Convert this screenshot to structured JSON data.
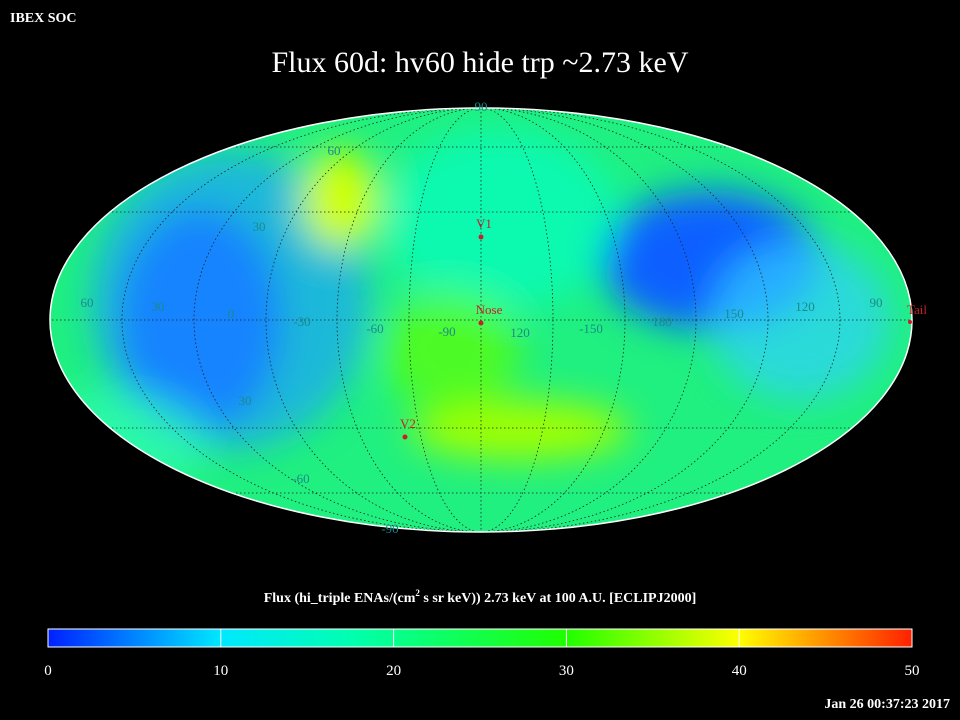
{
  "header": {
    "source": "IBEX SOC",
    "title": "Flux   60d: hv60 hide trp ~2.73 keV"
  },
  "map": {
    "grid_labels": [
      "90",
      "60",
      "30",
      "60",
      "30",
      "0",
      "-30",
      "-60",
      "-90",
      "120",
      "-150",
      "180",
      "150",
      "120",
      "90",
      "30",
      "-60",
      "-90"
    ],
    "markers": [
      "V1",
      "Nose",
      "Tail",
      "V2"
    ]
  },
  "colorbar": {
    "label_parts": [
      "Flux (hi_triple ENAs/(cm",
      "2",
      " s sr keV))  2.73 keV at 100 A.U. [ECLIPJ2000]"
    ],
    "lim": [
      0,
      50
    ],
    "ticks": [
      0,
      10,
      20,
      30,
      40,
      50
    ]
  },
  "footer": {
    "timestamp": "Jan 26 00:37:23 2017"
  }
}
